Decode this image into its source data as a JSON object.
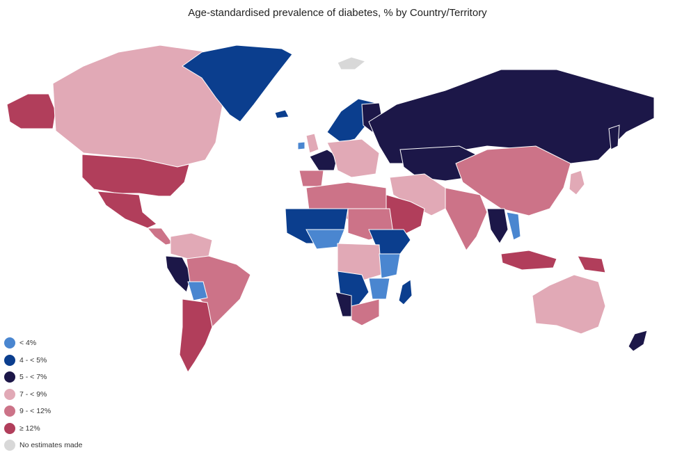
{
  "title": "Age-standardised prevalence of diabetes, % by Country/Territory",
  "legend": [
    {
      "label": "< 4%",
      "color": "#4a86d0"
    },
    {
      "label": "4 - < 5%",
      "color": "#0b3e8e"
    },
    {
      "label": "5 - < 7%",
      "color": "#1c1748"
    },
    {
      "label": "7 - < 9%",
      "color": "#e1a9b6"
    },
    {
      "label": "9 - < 12%",
      "color": "#cc7388"
    },
    {
      "label": "≥ 12%",
      "color": "#b13e5b"
    },
    {
      "label": "No estimates made",
      "color": "#d8d8d8"
    }
  ]
}
